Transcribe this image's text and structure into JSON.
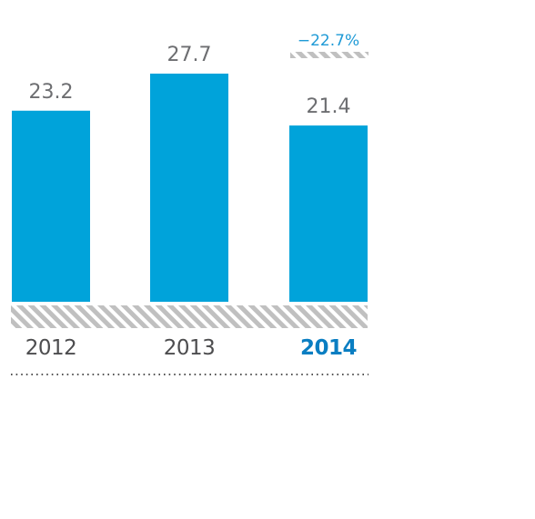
{
  "chart_data": {
    "type": "bar",
    "categories": [
      "2012",
      "2013",
      "2014"
    ],
    "values": [
      23.2,
      27.7,
      21.4
    ],
    "value_labels": [
      "23.2",
      "27.7",
      "21.4"
    ],
    "highlight_category": "2014",
    "change_annotation": "−22.7%",
    "title": "",
    "xlabel": "",
    "ylabel": "",
    "ylim": [
      0,
      27.7
    ],
    "grid": false,
    "legend": "none"
  },
  "colors": {
    "bar": "#00a3da",
    "value_text": "#6d6e71",
    "year_text": "#4d4d4f",
    "highlight_text": "#0a7ec2",
    "change_text": "#1e9ad6",
    "hatch_background": "#ffffff",
    "hatch_stripe": "#c0c0c0",
    "dots": "#555555"
  }
}
